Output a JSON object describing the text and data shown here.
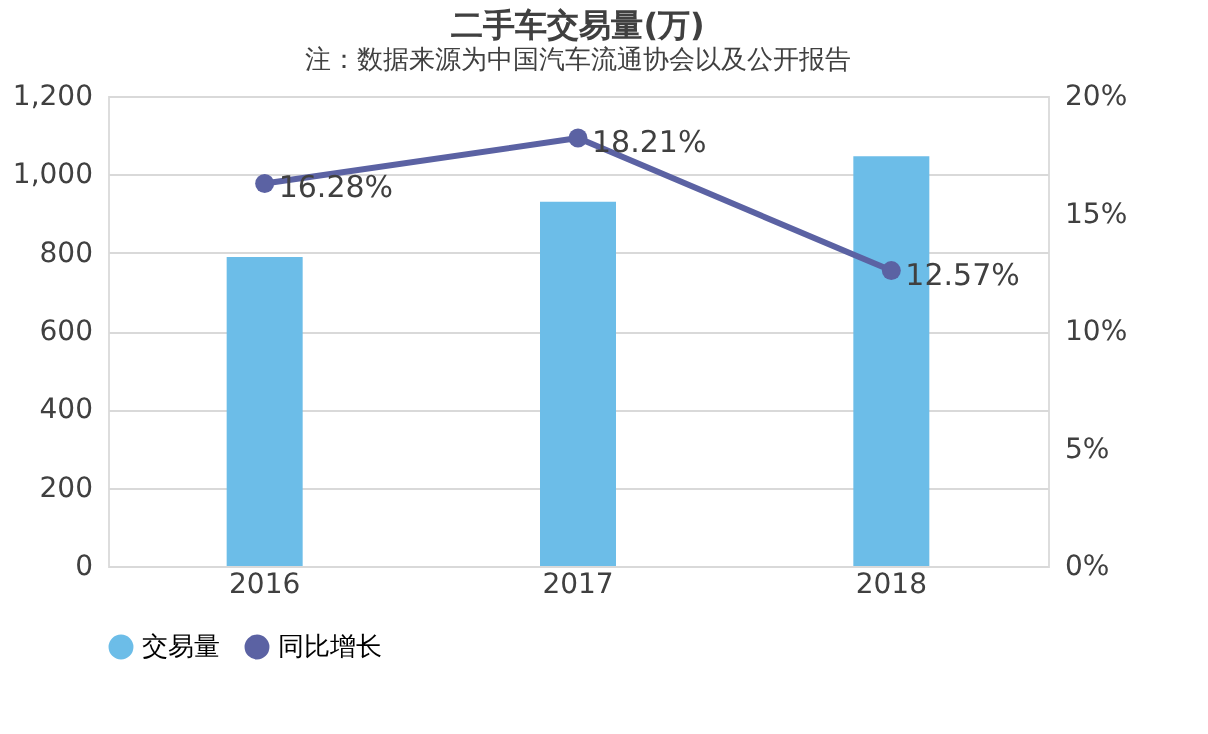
{
  "chart_data": {
    "type": "bar",
    "title": "二手车交易量(万)",
    "categories": [
      "2016",
      "2017",
      "2018"
    ],
    "series": [
      {
        "name": "交易量",
        "color": "#6cbde8",
        "values": [
          789,
          930,
          1046
        ]
      },
      {
        "name": "同比增长",
        "color": "#5b62a3",
        "type": "line",
        "axis": "y2",
        "values": [
          16.28,
          18.21,
          12.57
        ],
        "value_labels": [
          "16.28%",
          "18.21%",
          "12.57%"
        ]
      }
    ],
    "ylim": [
      0,
      1200
    ],
    "yticks": [
      0,
      200,
      400,
      600,
      800,
      {
        "value": 1000,
        "label": "1,000"
      },
      {
        "value": 1200,
        "label": "1,200"
      }
    ],
    "y2lim": [
      0,
      20
    ],
    "y2ticks": [
      {
        "value": 0,
        "label": "0%"
      },
      {
        "value": 5,
        "label": "5%"
      },
      {
        "value": 10,
        "label": "10%"
      },
      {
        "value": 15,
        "label": "15%"
      },
      {
        "value": 20,
        "label": "20%"
      }
    ],
    "grid": "y",
    "legend": "bottom",
    "marker": "circle",
    "annotations": [
      "注：数据来源为中国汽车流通协会以及公开报告"
    ]
  }
}
